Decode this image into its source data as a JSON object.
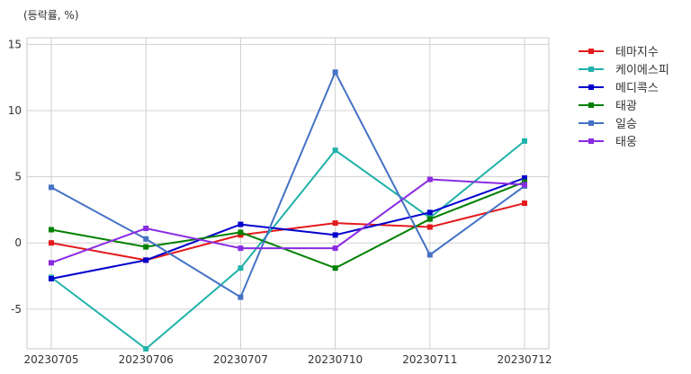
{
  "chart_data": {
    "type": "line",
    "unit_label": "(등락률, %)",
    "categories": [
      "20230705",
      "20230706",
      "20230707",
      "20230710",
      "20230711",
      "20230712"
    ],
    "yticks": [
      -5,
      0,
      5,
      10,
      15
    ],
    "ylim": [
      -8.0,
      15.5
    ],
    "grid": true,
    "legend_position": "right, outside top",
    "series": [
      {
        "name": "테마지수",
        "color": "#e31a1c",
        "values": [
          0.0,
          -1.3,
          0.6,
          1.5,
          1.2,
          3.0
        ]
      },
      {
        "name": "케이에스피",
        "color": "#20b2aa",
        "values": [
          -2.6,
          -8.0,
          -1.9,
          7.0,
          1.9,
          7.7
        ]
      },
      {
        "name": "메디콕스",
        "color": "#0000cd",
        "values": [
          -2.7,
          -1.3,
          1.4,
          0.6,
          2.3,
          4.9
        ]
      },
      {
        "name": "태광",
        "color": "#008000",
        "values": [
          1.0,
          -0.3,
          0.8,
          -1.9,
          1.8,
          4.6
        ]
      },
      {
        "name": "일승",
        "color": "#4472c4",
        "values": [
          4.2,
          0.3,
          -4.1,
          12.9,
          -0.9,
          4.3
        ]
      },
      {
        "name": "태웅",
        "color": "#8a2be2",
        "values": [
          -1.5,
          1.1,
          -0.4,
          -0.4,
          4.8,
          4.4
        ]
      }
    ]
  }
}
